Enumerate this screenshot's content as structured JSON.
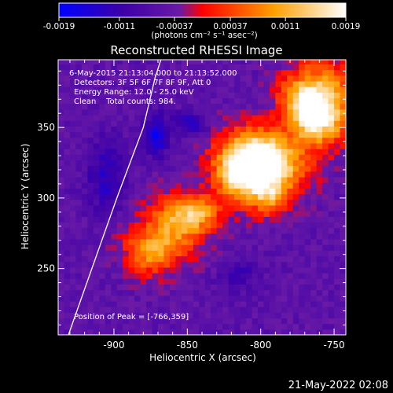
{
  "colorbar": {
    "tick_labels": [
      "-0.0019",
      "-0.0011",
      "-0.00037",
      "0.00037",
      "0.0011",
      "0.0019"
    ],
    "units_label": "(photons cm⁻² s⁻¹ asec⁻²)",
    "range": [
      -0.0019,
      0.0019
    ]
  },
  "annotations": {
    "time_range": "6-May-2015 21:13:04.000 to 21:13:52.000",
    "detectors": "Detectors: 3F 5F 6F 7F 8F 9F, Att 0",
    "energy_range": "Energy Range: 12.0 - 25.0 keV",
    "clean": "Clean    Total counts: 984.",
    "peak": "Position of Peak = [-766,359]"
  },
  "timestamp": "21-May-2022 02:08",
  "chart_data": {
    "type": "heatmap",
    "title": "Reconstructed RHESSI Image",
    "xlabel": "Heliocentric X (arcsec)",
    "ylabel": "Heliocentric Y (arcsec)",
    "xlim": [
      -938,
      -742
    ],
    "ylim": [
      203,
      398
    ],
    "x_ticks": [
      -900,
      -850,
      -800,
      -750
    ],
    "y_ticks": [
      250,
      300,
      350
    ],
    "x_tick_labels": [
      "-900",
      "-850",
      "-800",
      "-750"
    ],
    "y_tick_labels": [
      "250",
      "300",
      "350"
    ],
    "colormap": [
      "#0000ff",
      "#3c00a8",
      "#6a1aa6",
      "#ff0000",
      "#ffa000",
      "#ffffff"
    ],
    "peak": [
      -766,
      359
    ],
    "limb": [
      [
        -931,
        203
      ],
      [
        -915,
        250
      ],
      [
        -898,
        300
      ],
      [
        -880,
        350
      ],
      [
        -872,
        385
      ],
      [
        -868,
        398
      ]
    ],
    "emission_ridges": [
      {
        "x0": -872,
        "y0": 268,
        "x1": -803,
        "y1": 330,
        "amp": 0.00135,
        "width": 16
      },
      {
        "x0": -800,
        "y0": 316,
        "x1": -755,
        "y1": 372,
        "amp": 0.0016,
        "width": 17
      }
    ],
    "sources": [
      {
        "x": -766,
        "y": 359,
        "amp": 0.0017,
        "sx": 13,
        "sy": 20
      },
      {
        "x": -810,
        "y": 322,
        "amp": 0.00135,
        "sx": 12,
        "sy": 13
      },
      {
        "x": -843,
        "y": 291,
        "amp": 0.0014,
        "sx": 11,
        "sy": 9
      },
      {
        "x": -792,
        "y": 303,
        "amp": 0.001,
        "sx": 8,
        "sy": 10
      },
      {
        "x": -875,
        "y": 262,
        "amp": 0.001,
        "sx": 10,
        "sy": 10
      }
    ],
    "negative_regions": [
      {
        "x": -871,
        "y": 345,
        "amp": -0.0012,
        "sx": 6,
        "sy": 10
      },
      {
        "x": -905,
        "y": 315,
        "amp": -0.0008,
        "sx": 10,
        "sy": 18
      },
      {
        "x": -848,
        "y": 353,
        "amp": -0.0008,
        "sx": 8,
        "sy": 6
      },
      {
        "x": -815,
        "y": 245,
        "amp": -0.0006,
        "sx": 9,
        "sy": 8
      }
    ]
  }
}
